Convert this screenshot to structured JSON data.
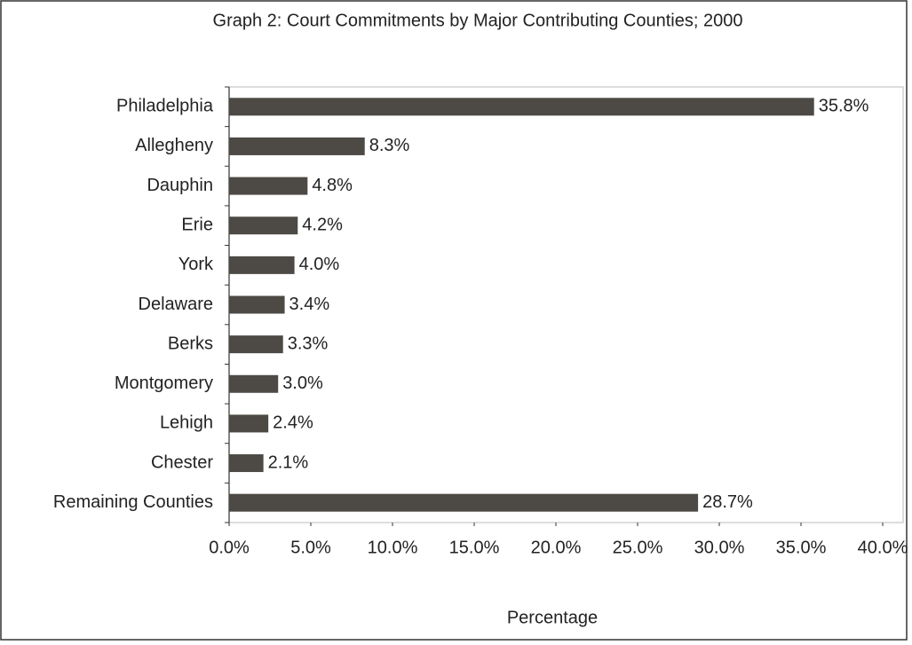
{
  "chart_data": {
    "type": "bar",
    "orientation": "horizontal",
    "title": "Graph 2: Court Commitments by Major Contributing Counties; 2000",
    "xlabel": "Percentage",
    "categories": [
      "Philadelphia",
      "Allegheny",
      "Dauphin",
      "Erie",
      "York",
      "Delaware",
      "Berks",
      "Montgomery",
      "Lehigh",
      "Chester",
      "Remaining Counties"
    ],
    "values": [
      35.8,
      8.3,
      4.8,
      4.2,
      4.0,
      3.4,
      3.3,
      3.0,
      2.4,
      2.1,
      28.7
    ],
    "value_labels": [
      "35.8%",
      "8.3%",
      "4.8%",
      "4.2%",
      "4.0%",
      "3.4%",
      "3.3%",
      "3.0%",
      "2.4%",
      "2.1%",
      "28.7%"
    ],
    "color": "#4d4a45",
    "xlim": [
      0,
      40
    ],
    "xticks": [
      {
        "value": 0,
        "label": "0.0%"
      },
      {
        "value": 5,
        "label": "5.0%"
      },
      {
        "value": 10,
        "label": "10.0%"
      },
      {
        "value": 15,
        "label": "15.0%"
      },
      {
        "value": 20,
        "label": "20.0%"
      },
      {
        "value": 25,
        "label": "25.0%"
      },
      {
        "value": 30,
        "label": "30.0%"
      },
      {
        "value": 35,
        "label": "35.0%"
      },
      {
        "value": 40,
        "label": "40.0%"
      }
    ],
    "grid": false
  }
}
